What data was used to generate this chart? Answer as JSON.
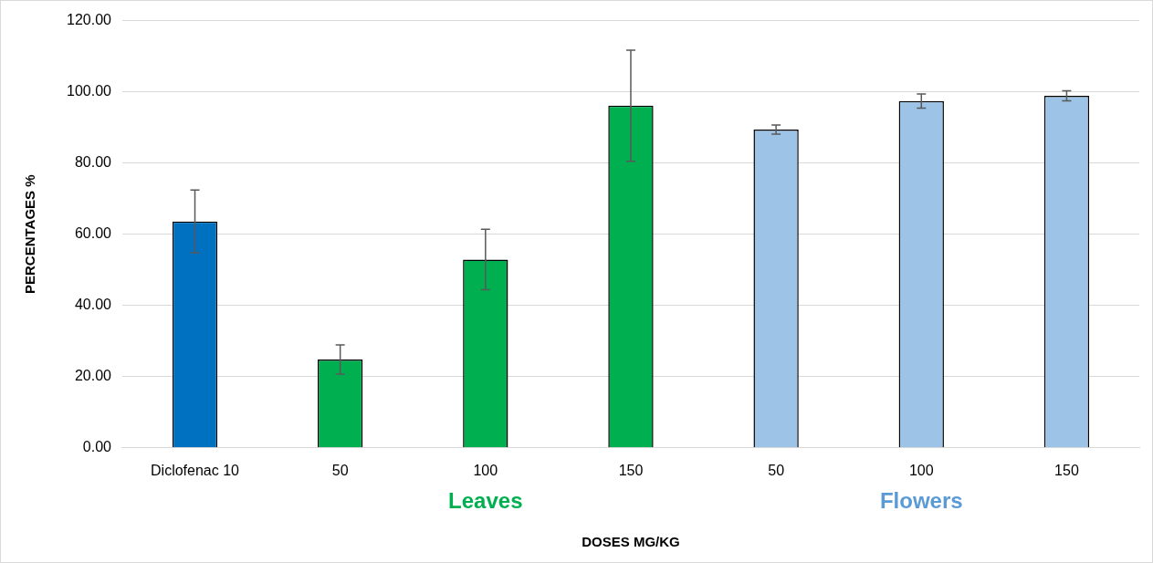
{
  "chart_data": {
    "type": "bar",
    "xlabel": "DOSES MG/KG",
    "ylabel": "PERCENTAGES %",
    "categories": [
      "Diclofenac 10",
      "50",
      "100",
      "150",
      "50",
      "100",
      "150"
    ],
    "values": [
      63.6,
      24.8,
      52.9,
      96.1,
      89.4,
      97.4,
      98.9
    ],
    "errors": [
      8.8,
      4.1,
      8.5,
      15.6,
      1.3,
      2.0,
      1.4
    ],
    "colors": [
      "#0070c0",
      "#00b050",
      "#00b050",
      "#00b050",
      "#9dc3e6",
      "#9dc3e6",
      "#9dc3e6"
    ],
    "annotations": [
      "Leaves",
      "Flowers"
    ],
    "ylim": [
      0,
      120
    ],
    "yticks": [
      {
        "value": 0,
        "label": "0.00"
      },
      {
        "value": 20,
        "label": "20.00"
      },
      {
        "value": 40,
        "label": "40.00"
      },
      {
        "value": 60,
        "label": "60.00"
      },
      {
        "value": 80,
        "label": "80.00"
      },
      {
        "value": 100,
        "label": "100.00"
      },
      {
        "value": 120,
        "label": "120.00"
      }
    ],
    "grid": "y",
    "legend": false
  }
}
